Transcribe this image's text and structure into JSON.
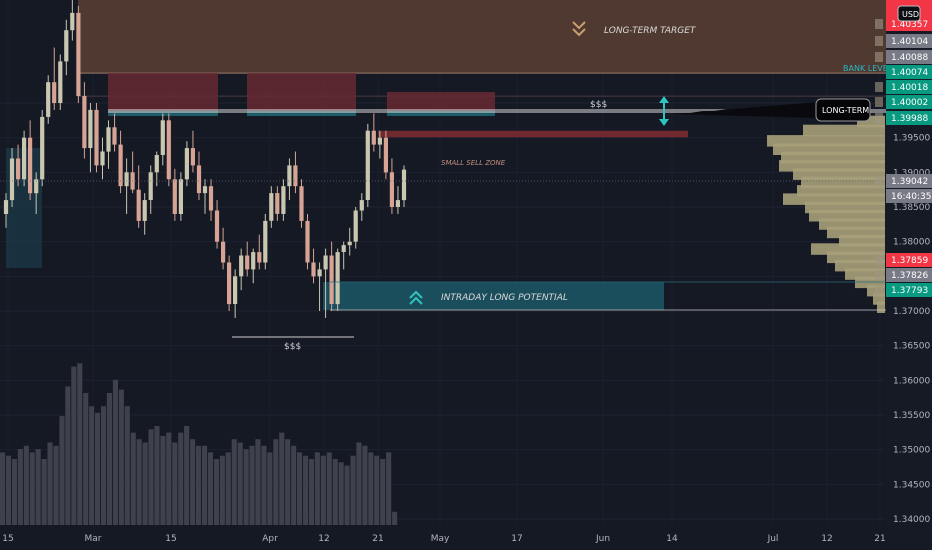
{
  "chart_data": {
    "type": "candlestick",
    "title": "",
    "currency": "USD",
    "ylim": [
      1.337,
      1.4155
    ],
    "price_axis": {
      "ticks": [
        "1.34000",
        "1.34500",
        "1.35000",
        "1.35500",
        "1.36000",
        "1.36500",
        "1.37000",
        "1.37500",
        "1.38000",
        "1.38500",
        "1.39000",
        "1.39500",
        "1.40000"
      ],
      "tick_values": [
        1.34,
        1.345,
        1.35,
        1.355,
        1.36,
        1.365,
        1.37,
        1.375,
        1.38,
        1.385,
        1.39,
        1.395,
        1.4
      ]
    },
    "time_axis": {
      "labels": [
        "15",
        "Mar",
        "15",
        "Apr",
        "12",
        "21",
        "May",
        "17",
        "Jun",
        "14",
        "Jul",
        "12",
        "21"
      ]
    },
    "price_badges": [
      {
        "value": "1.40357",
        "color": "#f23645"
      },
      {
        "value": "1.40104",
        "color": "#787b86"
      },
      {
        "value": "1.40088",
        "color": "#787b86"
      },
      {
        "value": "1.40074",
        "color": "#089981"
      },
      {
        "value": "1.40018",
        "color": "#089981"
      },
      {
        "value": "1.40002",
        "color": "#089981"
      },
      {
        "value": "1.39988",
        "color": "#089981"
      },
      {
        "value": "1.39042",
        "color": "#787b86"
      },
      {
        "value": "16:40:35",
        "color": "#787b86"
      },
      {
        "value": "1.37859",
        "color": "#f23645"
      },
      {
        "value": "1.37826",
        "color": "#787b86"
      },
      {
        "value": "1.37793",
        "color": "#089981"
      }
    ],
    "candles": [
      [
        1.384,
        1.387,
        1.382,
        1.386
      ],
      [
        1.386,
        1.3935,
        1.385,
        1.392
      ],
      [
        1.392,
        1.394,
        1.388,
        1.389
      ],
      [
        1.389,
        1.396,
        1.388,
        1.395
      ],
      [
        1.395,
        1.3975,
        1.386,
        1.387
      ],
      [
        1.387,
        1.39,
        1.384,
        1.389
      ],
      [
        1.389,
        1.399,
        1.388,
        1.398
      ],
      [
        1.398,
        1.404,
        1.397,
        1.403
      ],
      [
        1.403,
        1.408,
        1.399,
        1.4
      ],
      [
        1.4,
        1.407,
        1.399,
        1.406
      ],
      [
        1.406,
        1.412,
        1.404,
        1.4105
      ],
      [
        1.4105,
        1.4155,
        1.409,
        1.413
      ],
      [
        1.413,
        1.414,
        1.4,
        1.401
      ],
      [
        1.401,
        1.403,
        1.392,
        1.3935
      ],
      [
        1.3935,
        1.4,
        1.39,
        1.399
      ],
      [
        1.399,
        1.4,
        1.39,
        1.391
      ],
      [
        1.391,
        1.395,
        1.389,
        1.393
      ],
      [
        1.393,
        1.3975,
        1.3905,
        1.3965
      ],
      [
        1.3965,
        1.3985,
        1.393,
        1.394
      ],
      [
        1.394,
        1.396,
        1.387,
        1.388
      ],
      [
        1.388,
        1.392,
        1.384,
        1.39
      ],
      [
        1.39,
        1.393,
        1.387,
        1.3875
      ],
      [
        1.3875,
        1.391,
        1.382,
        1.383
      ],
      [
        1.383,
        1.387,
        1.381,
        1.386
      ],
      [
        1.386,
        1.391,
        1.384,
        1.39
      ],
      [
        1.39,
        1.393,
        1.388,
        1.3925
      ],
      [
        1.3925,
        1.3985,
        1.391,
        1.3975
      ],
      [
        1.3975,
        1.3985,
        1.388,
        1.389
      ],
      [
        1.389,
        1.3905,
        1.383,
        1.384
      ],
      [
        1.384,
        1.39,
        1.383,
        1.389
      ],
      [
        1.389,
        1.3945,
        1.388,
        1.3935
      ],
      [
        1.3935,
        1.396,
        1.39,
        1.391
      ],
      [
        1.391,
        1.393,
        1.386,
        1.387
      ],
      [
        1.387,
        1.389,
        1.384,
        1.388
      ],
      [
        1.388,
        1.389,
        1.383,
        1.3845
      ],
      [
        1.3845,
        1.386,
        1.379,
        1.38
      ],
      [
        1.38,
        1.382,
        1.376,
        1.377
      ],
      [
        1.377,
        1.378,
        1.37,
        1.371
      ],
      [
        1.371,
        1.376,
        1.369,
        1.375
      ],
      [
        1.375,
        1.379,
        1.373,
        1.378
      ],
      [
        1.378,
        1.38,
        1.375,
        1.376
      ],
      [
        1.376,
        1.379,
        1.374,
        1.3785
      ],
      [
        1.3785,
        1.381,
        1.376,
        1.377
      ],
      [
        1.377,
        1.384,
        1.376,
        1.383
      ],
      [
        1.383,
        1.388,
        1.382,
        1.387
      ],
      [
        1.387,
        1.388,
        1.383,
        1.384
      ],
      [
        1.384,
        1.389,
        1.383,
        1.388
      ],
      [
        1.388,
        1.392,
        1.386,
        1.391
      ],
      [
        1.391,
        1.393,
        1.387,
        1.388
      ],
      [
        1.388,
        1.389,
        1.382,
        1.383
      ],
      [
        1.383,
        1.384,
        1.376,
        1.377
      ],
      [
        1.377,
        1.379,
        1.374,
        1.375
      ],
      [
        1.375,
        1.377,
        1.37,
        1.376
      ],
      [
        1.376,
        1.379,
        1.369,
        1.378
      ],
      [
        1.378,
        1.38,
        1.37,
        1.371
      ],
      [
        1.371,
        1.379,
        1.37,
        1.3785
      ],
      [
        1.3785,
        1.38,
        1.376,
        1.3795
      ],
      [
        1.3795,
        1.382,
        1.378,
        1.38
      ],
      [
        1.38,
        1.385,
        1.379,
        1.3845
      ],
      [
        1.3845,
        1.387,
        1.383,
        1.386
      ],
      [
        1.386,
        1.397,
        1.385,
        1.396
      ],
      [
        1.396,
        1.3985,
        1.393,
        1.394
      ],
      [
        1.394,
        1.396,
        1.392,
        1.395
      ],
      [
        1.395,
        1.396,
        1.389,
        1.39
      ],
      [
        1.39,
        1.392,
        1.384,
        1.385
      ],
      [
        1.385,
        1.388,
        1.384,
        1.386
      ],
      [
        1.386,
        1.391,
        1.385,
        1.3904
      ]
    ],
    "volume": [
      0.22,
      0.21,
      0.2,
      0.23,
      0.24,
      0.22,
      0.23,
      0.2,
      0.25,
      0.24,
      0.33,
      0.42,
      0.48,
      0.49,
      0.4,
      0.36,
      0.34,
      0.36,
      0.4,
      0.44,
      0.41,
      0.36,
      0.28,
      0.26,
      0.25,
      0.29,
      0.3,
      0.27,
      0.28,
      0.25,
      0.28,
      0.3,
      0.26,
      0.24,
      0.24,
      0.22,
      0.2,
      0.21,
      0.22,
      0.26,
      0.25,
      0.23,
      0.24,
      0.26,
      0.24,
      0.22,
      0.26,
      0.28,
      0.26,
      0.24,
      0.22,
      0.21,
      0.2,
      0.22,
      0.21,
      0.22,
      0.2,
      0.19,
      0.18,
      0.21,
      0.25,
      0.24,
      0.22,
      0.21,
      0.2,
      0.22,
      0.04
    ],
    "volume_profile": [
      {
        "price": 1.3973,
        "width": 28
      },
      {
        "price": 1.396,
        "width": 82
      },
      {
        "price": 1.3945,
        "width": 118
      },
      {
        "price": 1.3933,
        "width": 112
      },
      {
        "price": 1.3921,
        "width": 104
      },
      {
        "price": 1.3909,
        "width": 106
      },
      {
        "price": 1.3897,
        "width": 92
      },
      {
        "price": 1.3885,
        "width": 84
      },
      {
        "price": 1.3873,
        "width": 88
      },
      {
        "price": 1.3861,
        "width": 102
      },
      {
        "price": 1.3849,
        "width": 80
      },
      {
        "price": 1.3837,
        "width": 76
      },
      {
        "price": 1.3825,
        "width": 66
      },
      {
        "price": 1.3813,
        "width": 58
      },
      {
        "price": 1.3801,
        "width": 46
      },
      {
        "price": 1.3789,
        "width": 74
      },
      {
        "price": 1.3777,
        "width": 58
      },
      {
        "price": 1.3765,
        "width": 50
      },
      {
        "price": 1.3753,
        "width": 40
      },
      {
        "price": 1.3741,
        "width": 30
      },
      {
        "price": 1.3729,
        "width": 18
      },
      {
        "price": 1.3717,
        "width": 12
      },
      {
        "price": 1.3705,
        "width": 8
      }
    ],
    "zones": [
      {
        "label": "LONG-TERM TARGET",
        "top": 1.4155,
        "bottom": 1.4043,
        "color": "#5b3f33"
      },
      {
        "label": "SMALL SELL ZONE",
        "top": 1.396,
        "bottom": 1.3952,
        "color": "#7a2b30"
      },
      {
        "label": "INTRADAY LONG POTENTIAL",
        "top": 1.379,
        "bottom": 1.376,
        "color": "#1c5866"
      }
    ],
    "annotations": [
      "BANK LEVEL",
      "LONG-TERM",
      "$$$",
      "$$$"
    ]
  }
}
